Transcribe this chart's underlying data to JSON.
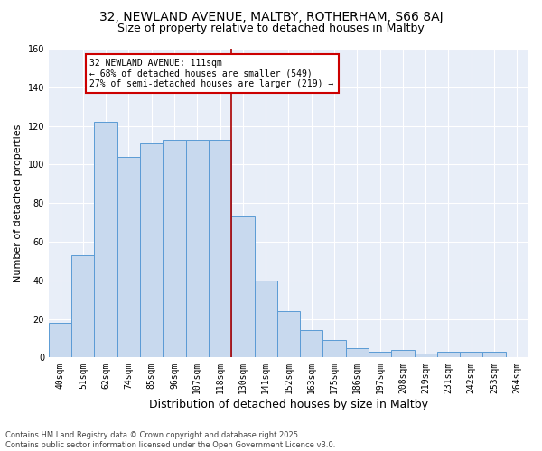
{
  "title1": "32, NEWLAND AVENUE, MALTBY, ROTHERHAM, S66 8AJ",
  "title2": "Size of property relative to detached houses in Maltby",
  "xlabel": "Distribution of detached houses by size in Maltby",
  "ylabel": "Number of detached properties",
  "categories": [
    "40sqm",
    "51sqm",
    "62sqm",
    "74sqm",
    "85sqm",
    "96sqm",
    "107sqm",
    "118sqm",
    "130sqm",
    "141sqm",
    "152sqm",
    "163sqm",
    "175sqm",
    "186sqm",
    "197sqm",
    "208sqm",
    "219sqm",
    "231sqm",
    "242sqm",
    "253sqm",
    "264sqm"
  ],
  "values": [
    18,
    53,
    122,
    104,
    111,
    113,
    113,
    113,
    73,
    40,
    24,
    14,
    9,
    5,
    3,
    4,
    2,
    3,
    3,
    3,
    0
  ],
  "bar_color": "#c8d9ee",
  "bar_edge_color": "#5b9bd5",
  "annotation_text": "32 NEWLAND AVENUE: 111sqm\n← 68% of detached houses are smaller (549)\n27% of semi-detached houses are larger (219) →",
  "annotation_box_color": "#ffffff",
  "annotation_box_edge_color": "#cc0000",
  "vline_color": "#aa0000",
  "ylim": [
    0,
    160
  ],
  "yticks": [
    0,
    20,
    40,
    60,
    80,
    100,
    120,
    140,
    160
  ],
  "footer1": "Contains HM Land Registry data © Crown copyright and database right 2025.",
  "footer2": "Contains public sector information licensed under the Open Government Licence v3.0.",
  "background_color": "#e8eef8",
  "grid_color": "#ffffff",
  "title_fontsize": 10,
  "subtitle_fontsize": 9,
  "tick_fontsize": 7,
  "ylabel_fontsize": 8,
  "xlabel_fontsize": 9,
  "footer_fontsize": 6,
  "annot_fontsize": 7
}
